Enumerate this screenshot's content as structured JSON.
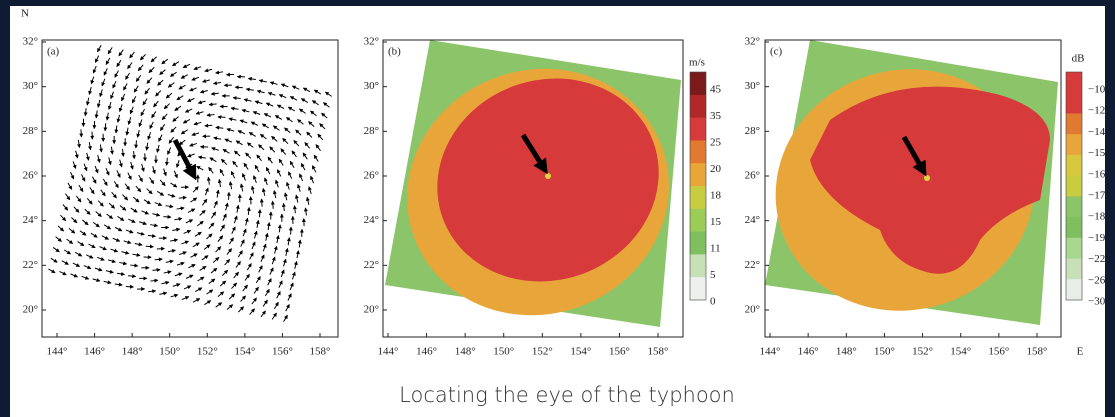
{
  "figure": {
    "compass": "N",
    "panels": [
      {
        "label": "(a)",
        "yticks": [
          "32°",
          "30°",
          "28°",
          "26°",
          "24°",
          "22°",
          "20°"
        ],
        "xticks": [
          "144°",
          "146°",
          "148°",
          "150°",
          "152°",
          "154°",
          "156°",
          "158°"
        ]
      },
      {
        "label": "(b)",
        "yticks": [
          "32°",
          "30°",
          "28°",
          "26°",
          "24°",
          "22°",
          "20°"
        ],
        "xticks": [
          "144°",
          "146°",
          "148°",
          "150°",
          "152°",
          "154°",
          "156°",
          "158°"
        ],
        "colorbar": {
          "unit": "m/s",
          "labels": [
            "45",
            "35",
            "25",
            "20",
            "18",
            "15",
            "11",
            "5",
            "0"
          ]
        }
      },
      {
        "label": "(c)",
        "yticks": [
          "32°",
          "30°",
          "28°",
          "26°",
          "24°",
          "22°",
          "20°"
        ],
        "xticks": [
          "144°",
          "146°",
          "148°",
          "150°",
          "152°",
          "154°",
          "156°",
          "158°"
        ],
        "x_axis_letter": "E",
        "colorbar": {
          "unit": "dB",
          "labels": [
            "−10",
            "−12",
            "−14",
            "−15",
            "−16",
            "−17",
            "−18",
            "−19",
            "−22",
            "−26",
            "−30"
          ]
        }
      }
    ]
  },
  "caption": "Locating the eye of the typhoon"
}
